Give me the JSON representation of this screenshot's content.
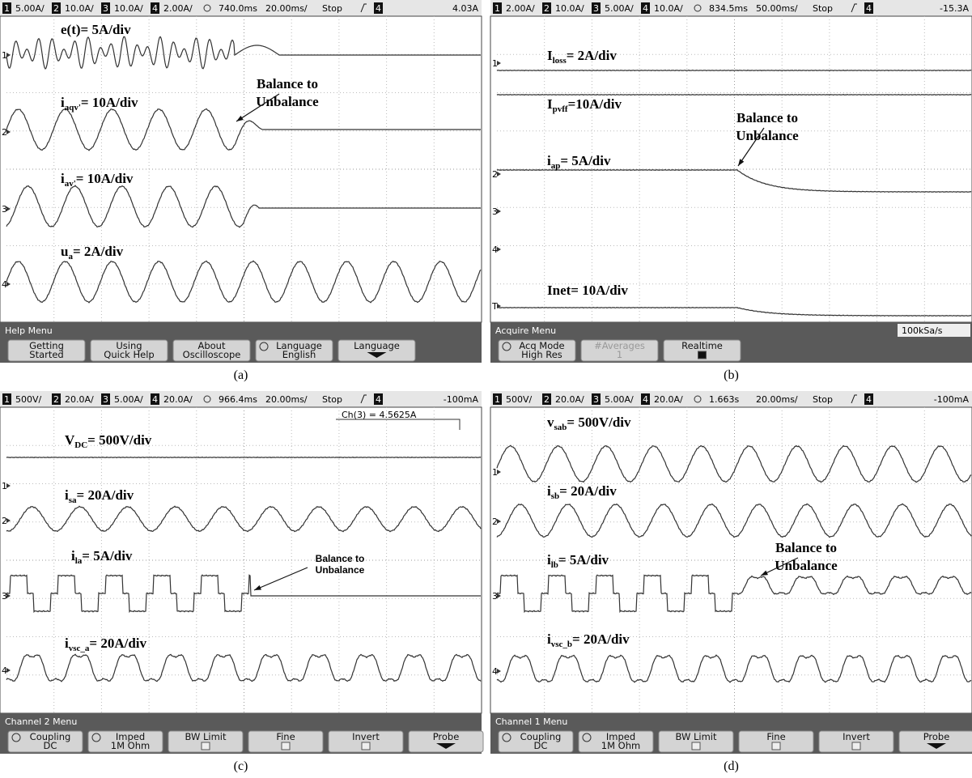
{
  "panels": [
    {
      "header": {
        "channels": [
          {
            "number": "1",
            "scale": "5.00A/"
          },
          {
            "number": "2",
            "scale": "10.0A/"
          },
          {
            "number": "3",
            "scale": "10.0A/"
          },
          {
            "number": "4",
            "scale": "2.00A/"
          }
        ],
        "delay": "740.0ms",
        "timebase": "20.00ms/",
        "status": "Stop",
        "trigger_channel": "4",
        "trigger_level": "4.03A"
      },
      "markers": [
        "1",
        "2",
        "3",
        "4"
      ],
      "trace_labels": [
        {
          "text": "e(t)= 5A/div"
        },
        {
          "text": "i",
          "sub": "aqv'",
          "tail": "= 10A/div"
        },
        {
          "text": "i",
          "sub": "av'",
          "tail": "= 10A/div"
        },
        {
          "text": "u",
          "sub": "a",
          "tail": "= 2A/div"
        }
      ],
      "annotation": [
        "Balance to",
        "Unbalance"
      ],
      "menu": {
        "title": "Help Menu",
        "buttons": [
          [
            "Getting",
            "Started"
          ],
          [
            "Using",
            "Quick Help"
          ],
          [
            "About",
            "Oscilloscope"
          ],
          [
            "Language",
            "English"
          ],
          [
            "Language"
          ]
        ]
      },
      "caption": "(a)"
    },
    {
      "header": {
        "channels": [
          {
            "number": "1",
            "scale": "2.00A/"
          },
          {
            "number": "2",
            "scale": "10.0A/"
          },
          {
            "number": "3",
            "scale": "5.00A/"
          },
          {
            "number": "4",
            "scale": "10.0A/"
          }
        ],
        "delay": "834.5ms",
        "timebase": "50.00ms/",
        "status": "Stop",
        "trigger_channel": "4",
        "trigger_level": "-15.3A"
      },
      "markers": [
        "1",
        "2",
        "3",
        "4",
        "T"
      ],
      "trace_labels": [
        {
          "text": "I",
          "sub": "loss",
          "tail": "= 2A/div"
        },
        {
          "text": "I",
          "sub": "pvff",
          "tail": "=10A/div"
        },
        {
          "text": "i",
          "sub": "ap",
          "tail": "= 5A/div"
        },
        {
          "text": "Inet= 10A/div"
        }
      ],
      "annotation": [
        "Balance to",
        "Unbalance"
      ],
      "menu": {
        "title": "Acquire Menu",
        "rate": "100kSa/s",
        "buttons": [
          [
            "Acq Mode",
            "High Res"
          ],
          [
            "#Averages",
            "1"
          ],
          [
            "Realtime"
          ]
        ]
      },
      "caption": "(b)"
    },
    {
      "header": {
        "channels": [
          {
            "number": "1",
            "scale": "500V/"
          },
          {
            "number": "2",
            "scale": "20.0A/"
          },
          {
            "number": "3",
            "scale": "5.00A/"
          },
          {
            "number": "4",
            "scale": "20.0A/"
          }
        ],
        "delay": "966.4ms",
        "timebase": "20.00ms/",
        "status": "Stop",
        "trigger_channel": "4",
        "trigger_level": "-100mA"
      },
      "markers": [
        "1",
        "2",
        "3",
        "4"
      ],
      "readout": "Ch(3) = 4.5625A",
      "trace_labels": [
        {
          "text": "V",
          "sub": "DC",
          "tail": "= 500V/div"
        },
        {
          "text": "i",
          "sub": "sa",
          "tail": "= 20A/div"
        },
        {
          "text": "i",
          "sub": "la",
          "tail": "= 5A/div"
        },
        {
          "text": "i",
          "sub": "vsc_a",
          "tail": "= 20A/div"
        }
      ],
      "annotation": [
        "Balance to",
        "Unbalance"
      ],
      "menu": {
        "title": "Channel 2 Menu",
        "buttons": [
          [
            "Coupling",
            "DC"
          ],
          [
            "Imped",
            "1M Ohm"
          ],
          [
            "BW Limit"
          ],
          [
            "Fine"
          ],
          [
            "Invert"
          ],
          [
            "Probe"
          ]
        ]
      },
      "caption": "(c)"
    },
    {
      "header": {
        "channels": [
          {
            "number": "1",
            "scale": "500V/"
          },
          {
            "number": "2",
            "scale": "20.0A/"
          },
          {
            "number": "3",
            "scale": "5.00A/"
          },
          {
            "number": "4",
            "scale": "20.0A/"
          }
        ],
        "delay": "1.663s",
        "timebase": "20.00ms/",
        "status": "Stop",
        "trigger_channel": "4",
        "trigger_level": "-100mA"
      },
      "markers": [
        "1",
        "2",
        "3",
        "4"
      ],
      "trace_labels": [
        {
          "text": "v",
          "sub": "sab",
          "tail": "= 500V/div"
        },
        {
          "text": "i",
          "sub": "sb",
          "tail": "= 20A/div"
        },
        {
          "text": "i",
          "sub": "lb",
          "tail": "= 5A/div"
        },
        {
          "text": "i",
          "sub": "vsc_b",
          "tail": "= 20A/div"
        }
      ],
      "annotation": [
        "Balance to",
        "Unbalance"
      ],
      "menu": {
        "title": "Channel 1 Menu",
        "buttons": [
          [
            "Coupling",
            "DC"
          ],
          [
            "Imped",
            "1M Ohm"
          ],
          [
            "BW Limit"
          ],
          [
            "Fine"
          ],
          [
            "Invert"
          ],
          [
            "Probe"
          ]
        ]
      },
      "caption": "(d)"
    }
  ]
}
